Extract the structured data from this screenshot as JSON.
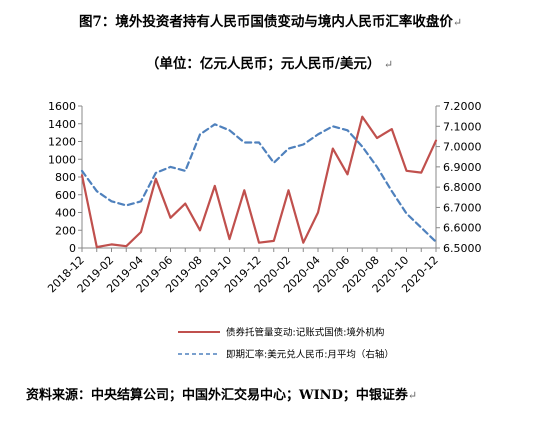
{
  "title": "图7：境外投资者持有人民币国债变动与境内人民币汇率收盘价",
  "subtitle": "（单位：亿元人民币；元人民币/美元）",
  "source": "资料来源：中央结算公司；中国外汇交易中心；WIND；中银证券",
  "chart_data": {
    "type": "line",
    "x": [
      "2018-12",
      "2019-01",
      "2019-02",
      "2019-03",
      "2019-04",
      "2019-05",
      "2019-06",
      "2019-07",
      "2019-08",
      "2019-09",
      "2019-10",
      "2019-11",
      "2019-12",
      "2020-01",
      "2020-02",
      "2020-03",
      "2020-04",
      "2020-05",
      "2020-06",
      "2020-07",
      "2020-08",
      "2020-09",
      "2020-10",
      "2020-11",
      "2020-12"
    ],
    "x_tick_labels": [
      "2018-12",
      "2019-02",
      "2019-04",
      "2019-06",
      "2019-08",
      "2019-10",
      "2019-12",
      "2020-02",
      "2020-04",
      "2020-06",
      "2020-08",
      "2020-10",
      "2020-12"
    ],
    "left_axis": {
      "ylim": [
        0,
        1600
      ],
      "ticks": [
        0,
        200,
        400,
        600,
        800,
        1000,
        1200,
        1400,
        1600
      ]
    },
    "right_axis": {
      "ylim": [
        6.5,
        7.2
      ],
      "ticks": [
        "6.5000",
        "6.6000",
        "6.7000",
        "6.8000",
        "6.9000",
        "7.0000",
        "7.1000",
        "7.2000"
      ]
    },
    "series": [
      {
        "name": "债券托管量变动:记账式国债:境外机构",
        "axis": "left",
        "color": "#c0504d",
        "style": "solid",
        "values": [
          820,
          10,
          40,
          20,
          180,
          780,
          340,
          500,
          200,
          700,
          100,
          650,
          60,
          80,
          650,
          60,
          400,
          1120,
          830,
          1480,
          1240,
          1340,
          870,
          850,
          1210
        ]
      },
      {
        "name": "即期汇率:美元兑人民币:月平均（右轴）",
        "axis": "right",
        "color": "#4f81bd",
        "style": "dashed",
        "values": [
          6.88,
          6.78,
          6.73,
          6.71,
          6.73,
          6.87,
          6.9,
          6.88,
          7.06,
          7.11,
          7.08,
          7.02,
          7.02,
          6.92,
          6.99,
          7.01,
          7.06,
          7.1,
          7.08,
          7.0,
          6.9,
          6.78,
          6.67,
          6.6,
          6.53
        ]
      }
    ],
    "legend_position": "bottom",
    "grid": false
  }
}
